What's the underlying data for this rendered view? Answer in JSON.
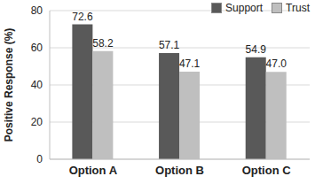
{
  "chart_data": {
    "type": "bar",
    "categories": [
      "Option A",
      "Option B",
      "Option C"
    ],
    "y_label": "Positive Response (%)",
    "series": [
      {
        "name": "Support",
        "color": "#595959",
        "values": [
          72.6,
          57.1,
          54.9
        ],
        "value_labels": [
          "72.6",
          "57.1",
          "54.9"
        ]
      },
      {
        "name": "Trust",
        "color": "#bfbfbf",
        "values": [
          58.2,
          47.1,
          47.0
        ],
        "value_labels": [
          "58.2",
          "47.1",
          "47.0"
        ]
      }
    ],
    "ylim": [
      0,
      80
    ],
    "yticks": [
      0,
      20,
      40,
      60,
      80
    ],
    "grid": true,
    "legend": "upper right",
    "data_labels": true
  }
}
